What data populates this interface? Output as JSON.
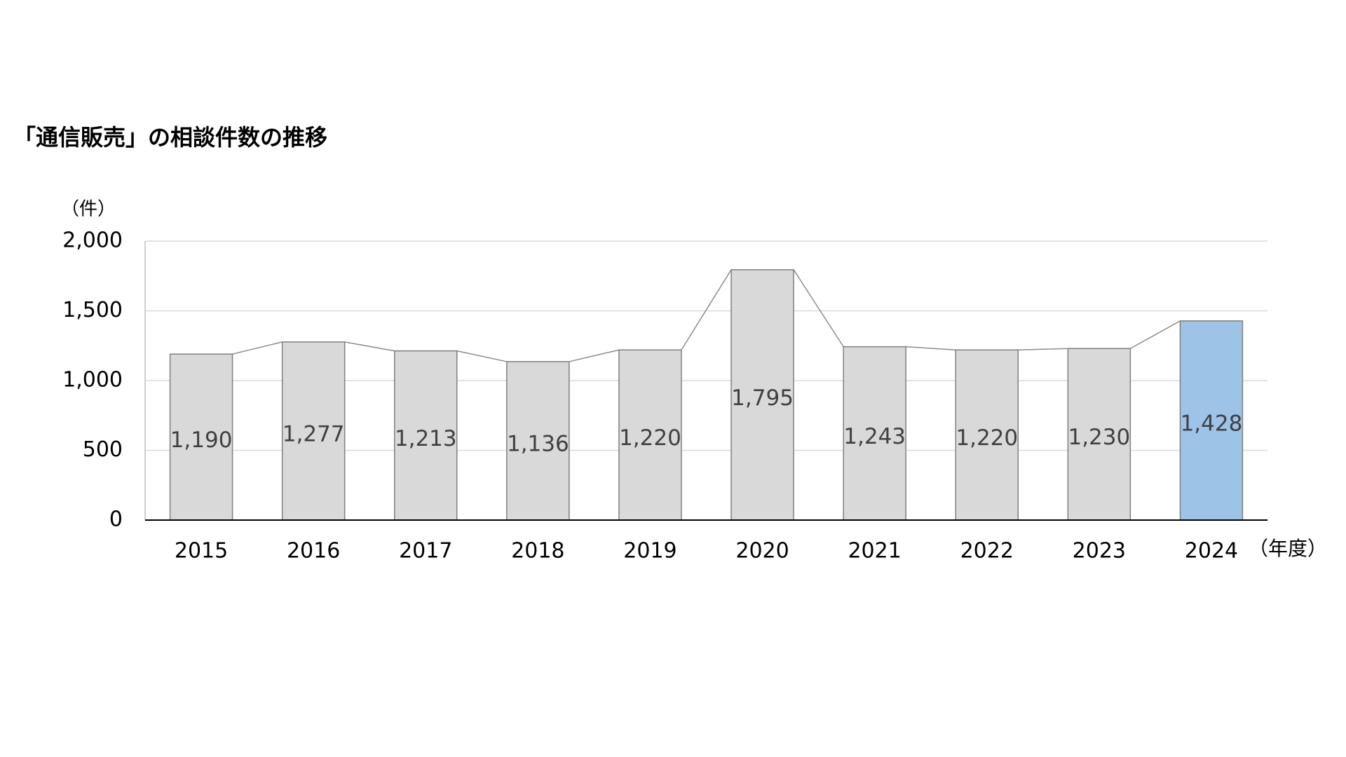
{
  "chart_data": {
    "type": "bar",
    "title": "「通信販売」の相談件数の推移",
    "y_unit": "（件）",
    "x_unit": "（年度）",
    "categories": [
      "2015",
      "2016",
      "2017",
      "2018",
      "2019",
      "2020",
      "2021",
      "2022",
      "2023",
      "2024"
    ],
    "values": [
      1190,
      1277,
      1213,
      1136,
      1220,
      1795,
      1243,
      1220,
      1230,
      1428
    ],
    "value_labels": [
      "1,190",
      "1,277",
      "1,213",
      "1,136",
      "1,220",
      "1,795",
      "1,243",
      "1,220",
      "1,230",
      "1,428"
    ],
    "colors": [
      "#d9d9d9",
      "#d9d9d9",
      "#d9d9d9",
      "#d9d9d9",
      "#d9d9d9",
      "#d9d9d9",
      "#d9d9d9",
      "#d9d9d9",
      "#d9d9d9",
      "#9dc3e6"
    ],
    "ylim": [
      0,
      2000
    ],
    "yticks": [
      0,
      500,
      {
        "value": 1000,
        "label": "1,000"
      },
      {
        "value": 1500,
        "label": "1,500"
      },
      {
        "value": 2000,
        "label": "2,000"
      }
    ],
    "grid": true,
    "series_lines": true
  }
}
